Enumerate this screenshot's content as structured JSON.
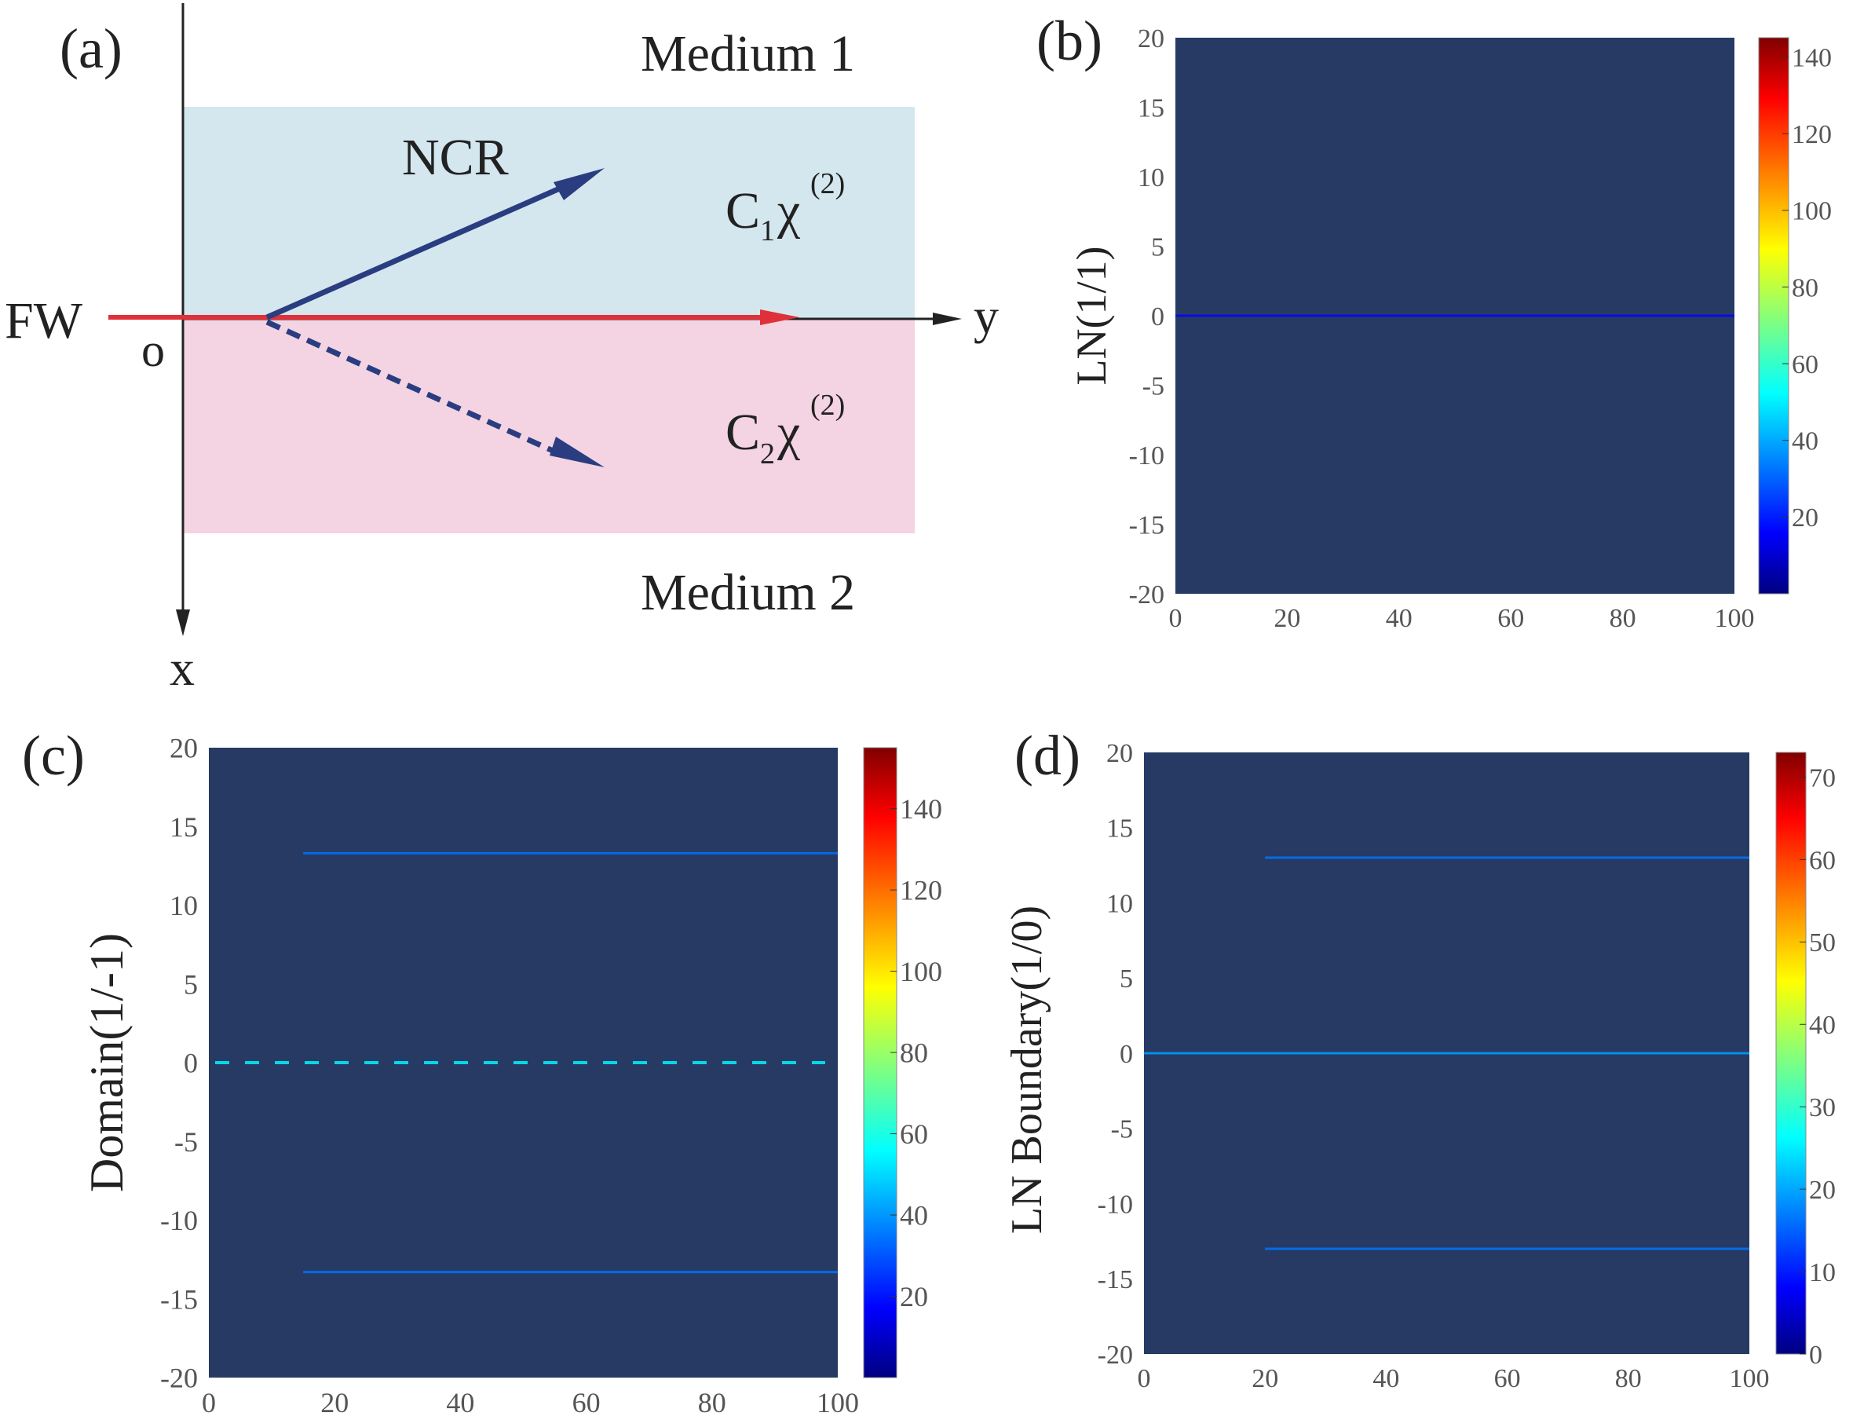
{
  "panel_a": {
    "label": "(a)",
    "medium_top": "Medium 1",
    "medium_bottom": "Medium 2",
    "ncr": "NCR",
    "fw": "FW",
    "origin": "o",
    "axis_y": "y",
    "axis_x": "x",
    "c1": "C",
    "c1_sub": "1",
    "c2": "C",
    "c2_sub": "2",
    "chi": "χ",
    "chi_sup": "(2)",
    "colors": {
      "medium1_fill": "#d4e7ee",
      "medium2_fill": "#f4d4e2",
      "fw_beam": "#e0303a",
      "ncr_arrow": "#2a3d80",
      "axis": "#222222"
    }
  },
  "chart_data": [
    {
      "panel": "(b)",
      "type": "heatmap",
      "ylabel": "LN(1/1)",
      "xlim": [
        0,
        100
      ],
      "ylim": [
        -20,
        20
      ],
      "x_ticks": [
        0,
        20,
        40,
        60,
        80,
        100
      ],
      "y_ticks": [
        20,
        15,
        10,
        5,
        0,
        -5,
        -10,
        -15,
        -20
      ],
      "colorbar": {
        "min": 0,
        "max": 145,
        "ticks": [
          20,
          40,
          60,
          80,
          100,
          120,
          140
        ]
      },
      "background_value": 0,
      "features": [
        {
          "kind": "line",
          "y": 0,
          "x_start": 0,
          "x_end": 100,
          "value": 8,
          "style": "solid"
        }
      ]
    },
    {
      "panel": "(c)",
      "type": "heatmap",
      "ylabel": "Domain(1/-1)",
      "xlim": [
        0,
        100
      ],
      "ylim": [
        -20,
        20
      ],
      "x_ticks": [
        0,
        20,
        40,
        60,
        80,
        100
      ],
      "y_ticks": [
        20,
        15,
        10,
        5,
        0,
        -5,
        -10,
        -15,
        -20
      ],
      "colorbar": {
        "min": 0,
        "max": 155,
        "ticks": [
          20,
          40,
          60,
          80,
          100,
          120,
          140
        ]
      },
      "background_value": 0,
      "features": [
        {
          "kind": "line",
          "y": 13.3,
          "x_start": 15,
          "x_end": 100,
          "value": 25,
          "style": "solid"
        },
        {
          "kind": "line",
          "y": 0,
          "x_start": 1,
          "x_end": 98,
          "value": 45,
          "style": "dashed"
        },
        {
          "kind": "line",
          "y": -13.3,
          "x_start": 15,
          "x_end": 100,
          "value": 25,
          "style": "solid"
        }
      ]
    },
    {
      "panel": "(d)",
      "type": "heatmap",
      "ylabel": "LN Boundary(1/0)",
      "xlim": [
        0,
        100
      ],
      "ylim": [
        -20,
        20
      ],
      "x_ticks": [
        0,
        20,
        40,
        60,
        80,
        100
      ],
      "y_ticks": [
        20,
        15,
        10,
        5,
        0,
        -5,
        -10,
        -15,
        -20
      ],
      "colorbar": {
        "min": 0,
        "max": 73,
        "ticks": [
          0,
          10,
          20,
          30,
          40,
          50,
          60,
          70
        ]
      },
      "background_value": 0,
      "features": [
        {
          "kind": "line",
          "y": 13,
          "x_start": 20,
          "x_end": 100,
          "value": 12,
          "style": "solid"
        },
        {
          "kind": "line",
          "y": 0,
          "x_start": 0,
          "x_end": 100,
          "value": 15,
          "style": "solid"
        },
        {
          "kind": "line",
          "y": -13,
          "x_start": 20,
          "x_end": 100,
          "value": 12,
          "style": "solid"
        }
      ]
    }
  ]
}
